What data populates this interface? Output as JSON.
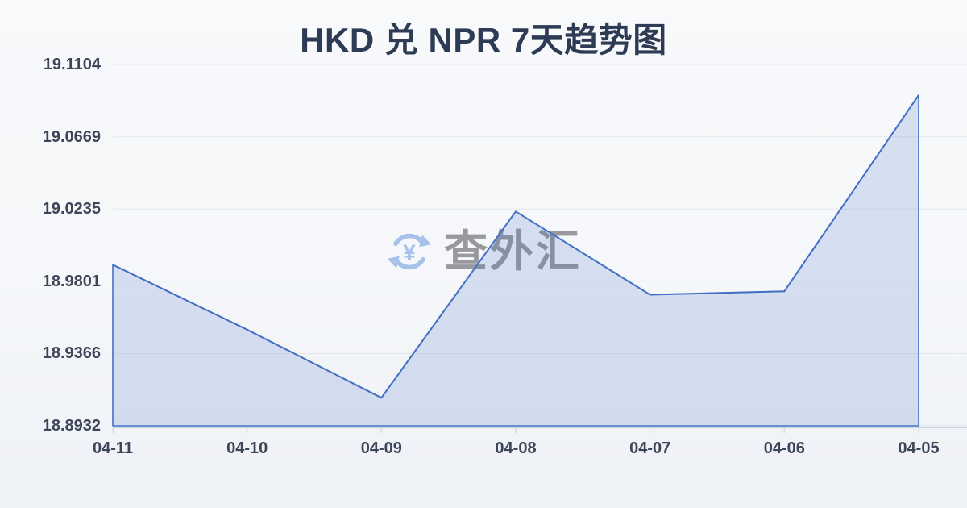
{
  "chart_data": {
    "type": "area",
    "title": "HKD 兑 NPR 7天趋势图",
    "categories": [
      "04-11",
      "04-10",
      "04-09",
      "04-08",
      "04-07",
      "04-06",
      "04-05"
    ],
    "values": [
      18.99,
      18.951,
      18.91,
      19.022,
      18.972,
      18.974,
      19.092
    ],
    "y_tick_labels": [
      "19.1104",
      "19.0669",
      "19.0235",
      "18.9801",
      "18.9366",
      "18.8932"
    ],
    "ylim": [
      18.8932,
      19.1104
    ],
    "xlabel": "",
    "ylabel": "",
    "grid": true,
    "legend": false,
    "colors": {
      "line": "#4470c4",
      "fill_rgba": "rgba(68,112,196,0.18)",
      "grid": "#e4e7ed",
      "axis": "#ccd3de",
      "tick": "#d5dae2",
      "title": "#2d3b54",
      "label": "#3d4659"
    }
  },
  "watermark": {
    "text": "查外汇",
    "icon": "currency-exchange-icon",
    "currency_symbol": "¥",
    "icon_color": "#a7c1ea"
  }
}
